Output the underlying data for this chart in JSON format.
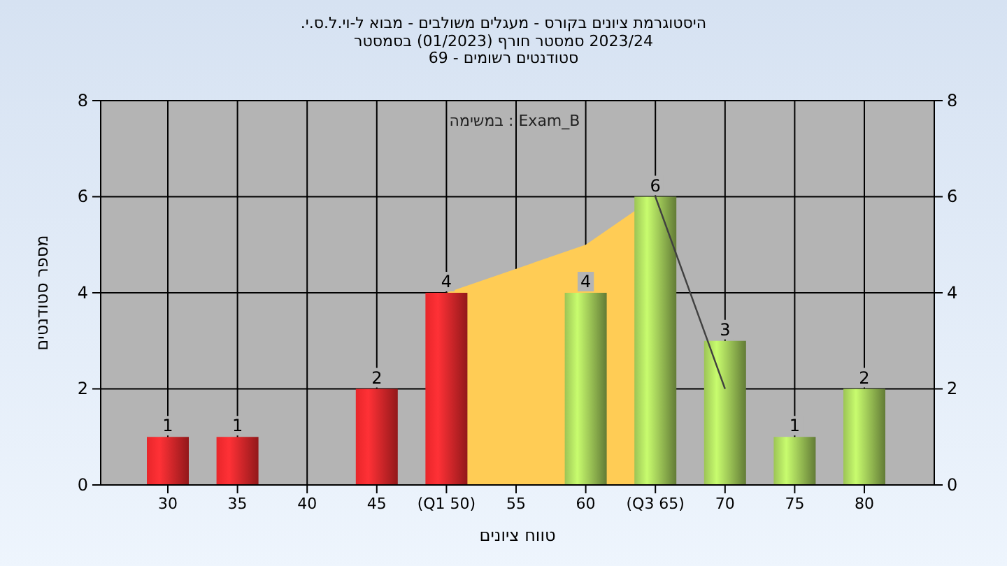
{
  "chart_data": {
    "type": "bar",
    "title": "היסטוגרמת ציונים בקורס - מעגלים משולבים - מבוא ל-וי.ל.ס.י.",
    "subtitle": "2023/24  סמסטר חורף  (01/2023)  בסמסטר\nסטודנטים רשומים - 69",
    "xlabel": "טווח ציונים",
    "ylabel": "מספר סטודנטים",
    "annotations": [
      "במשימה : Exam_B"
    ],
    "categories": [
      "30",
      "35",
      "40",
      "45",
      "(Q1 50)",
      "55",
      "60",
      "(Q3 65)",
      "70",
      "75",
      "80"
    ],
    "series": [
      {
        "type": "area",
        "color": "#ffcc55",
        "values": [
          null,
          null,
          null,
          null,
          4,
          4.5,
          5,
          6,
          null,
          null,
          null
        ]
      },
      {
        "type": "line",
        "color": "#404040",
        "values": [
          null,
          null,
          null,
          null,
          null,
          null,
          null,
          6,
          2,
          null,
          null
        ]
      },
      {
        "colors": [
          "#e8262a",
          "#e8262a",
          "#e8262a",
          "#e8262a",
          "#e8262a",
          "#e8262a",
          "#9cc456",
          "#9cc456",
          "#9cc456",
          "#9cc456",
          "#9cc456"
        ],
        "values": [
          1,
          1,
          0,
          2,
          4,
          0,
          4,
          6,
          3,
          1,
          2
        ],
        "value_labels": [
          "1",
          "1",
          null,
          "2",
          "4",
          null,
          "4",
          "6",
          "3",
          "1",
          "2"
        ]
      }
    ],
    "ylim": [
      0,
      8
    ],
    "yticks": [
      0,
      2,
      4,
      6,
      8
    ],
    "y2lim": [
      0,
      8
    ],
    "y2ticks": [
      0,
      2,
      4,
      6,
      8
    ],
    "grid": true
  }
}
